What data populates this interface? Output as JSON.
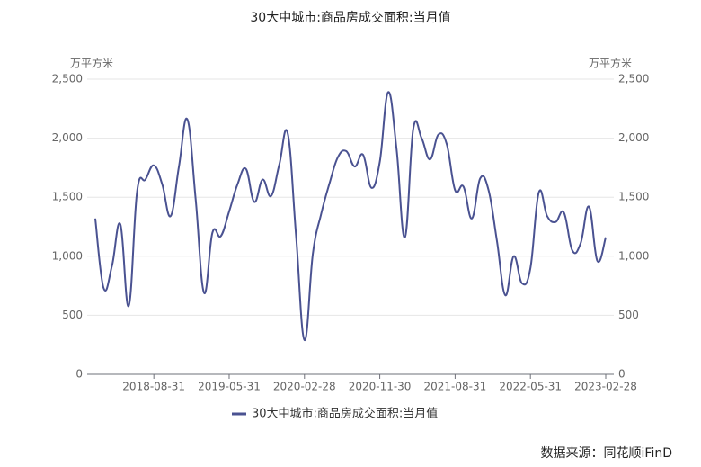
{
  "chart_data": {
    "type": "line",
    "title": "30大中城市:商品房成交面积:当月值",
    "y_label": "万平方米",
    "y2_label": "万平方米",
    "source": "数据来源：同花顺iFinD",
    "categories": [
      null,
      null,
      null,
      null,
      null,
      null,
      null,
      "2018-08-31",
      null,
      null,
      null,
      null,
      null,
      null,
      null,
      null,
      "2019-05-31",
      null,
      null,
      null,
      null,
      null,
      null,
      null,
      null,
      "2020-02-28",
      null,
      null,
      null,
      null,
      null,
      null,
      null,
      null,
      "2020-11-30",
      null,
      null,
      null,
      null,
      null,
      null,
      null,
      null,
      "2021-08-31",
      null,
      null,
      null,
      null,
      null,
      null,
      null,
      null,
      "2022-05-31",
      null,
      null,
      null,
      null,
      null,
      null,
      null,
      null,
      "2023-02-28"
    ],
    "series": [
      {
        "name": "30大中城市:商品房成交面积:当月值",
        "color": "#4a5291",
        "values": [
          1320,
          730,
          920,
          1270,
          580,
          1550,
          1650,
          1770,
          1610,
          1340,
          1760,
          2160,
          1480,
          690,
          1200,
          1170,
          1380,
          1610,
          1740,
          1460,
          1650,
          1510,
          1780,
          2040,
          1170,
          290,
          1020,
          1360,
          1620,
          1840,
          1890,
          1760,
          1860,
          1580,
          1800,
          2390,
          1910,
          1160,
          2080,
          2000,
          1820,
          2030,
          1950,
          1560,
          1590,
          1320,
          1660,
          1560,
          1130,
          670,
          1000,
          770,
          900,
          1540,
          1340,
          1290,
          1370,
          1050,
          1110,
          1420,
          960,
          1160
        ]
      }
    ],
    "ylim": [
      0,
      2500
    ],
    "yticks": [
      0,
      500,
      {
        "value": 1000,
        "label": "1,000"
      },
      {
        "value": 1500,
        "label": "1,500"
      },
      {
        "value": 2000,
        "label": "2,000"
      },
      {
        "value": 2500,
        "label": "2,500"
      }
    ],
    "y2lim": [
      0,
      2500
    ],
    "y2ticks": [
      0,
      500,
      {
        "value": 1000,
        "label": "1,000"
      },
      {
        "value": 1500,
        "label": "1,500"
      },
      {
        "value": 2000,
        "label": "2,000"
      },
      {
        "value": 2500,
        "label": "2,500"
      }
    ],
    "grid": true
  }
}
